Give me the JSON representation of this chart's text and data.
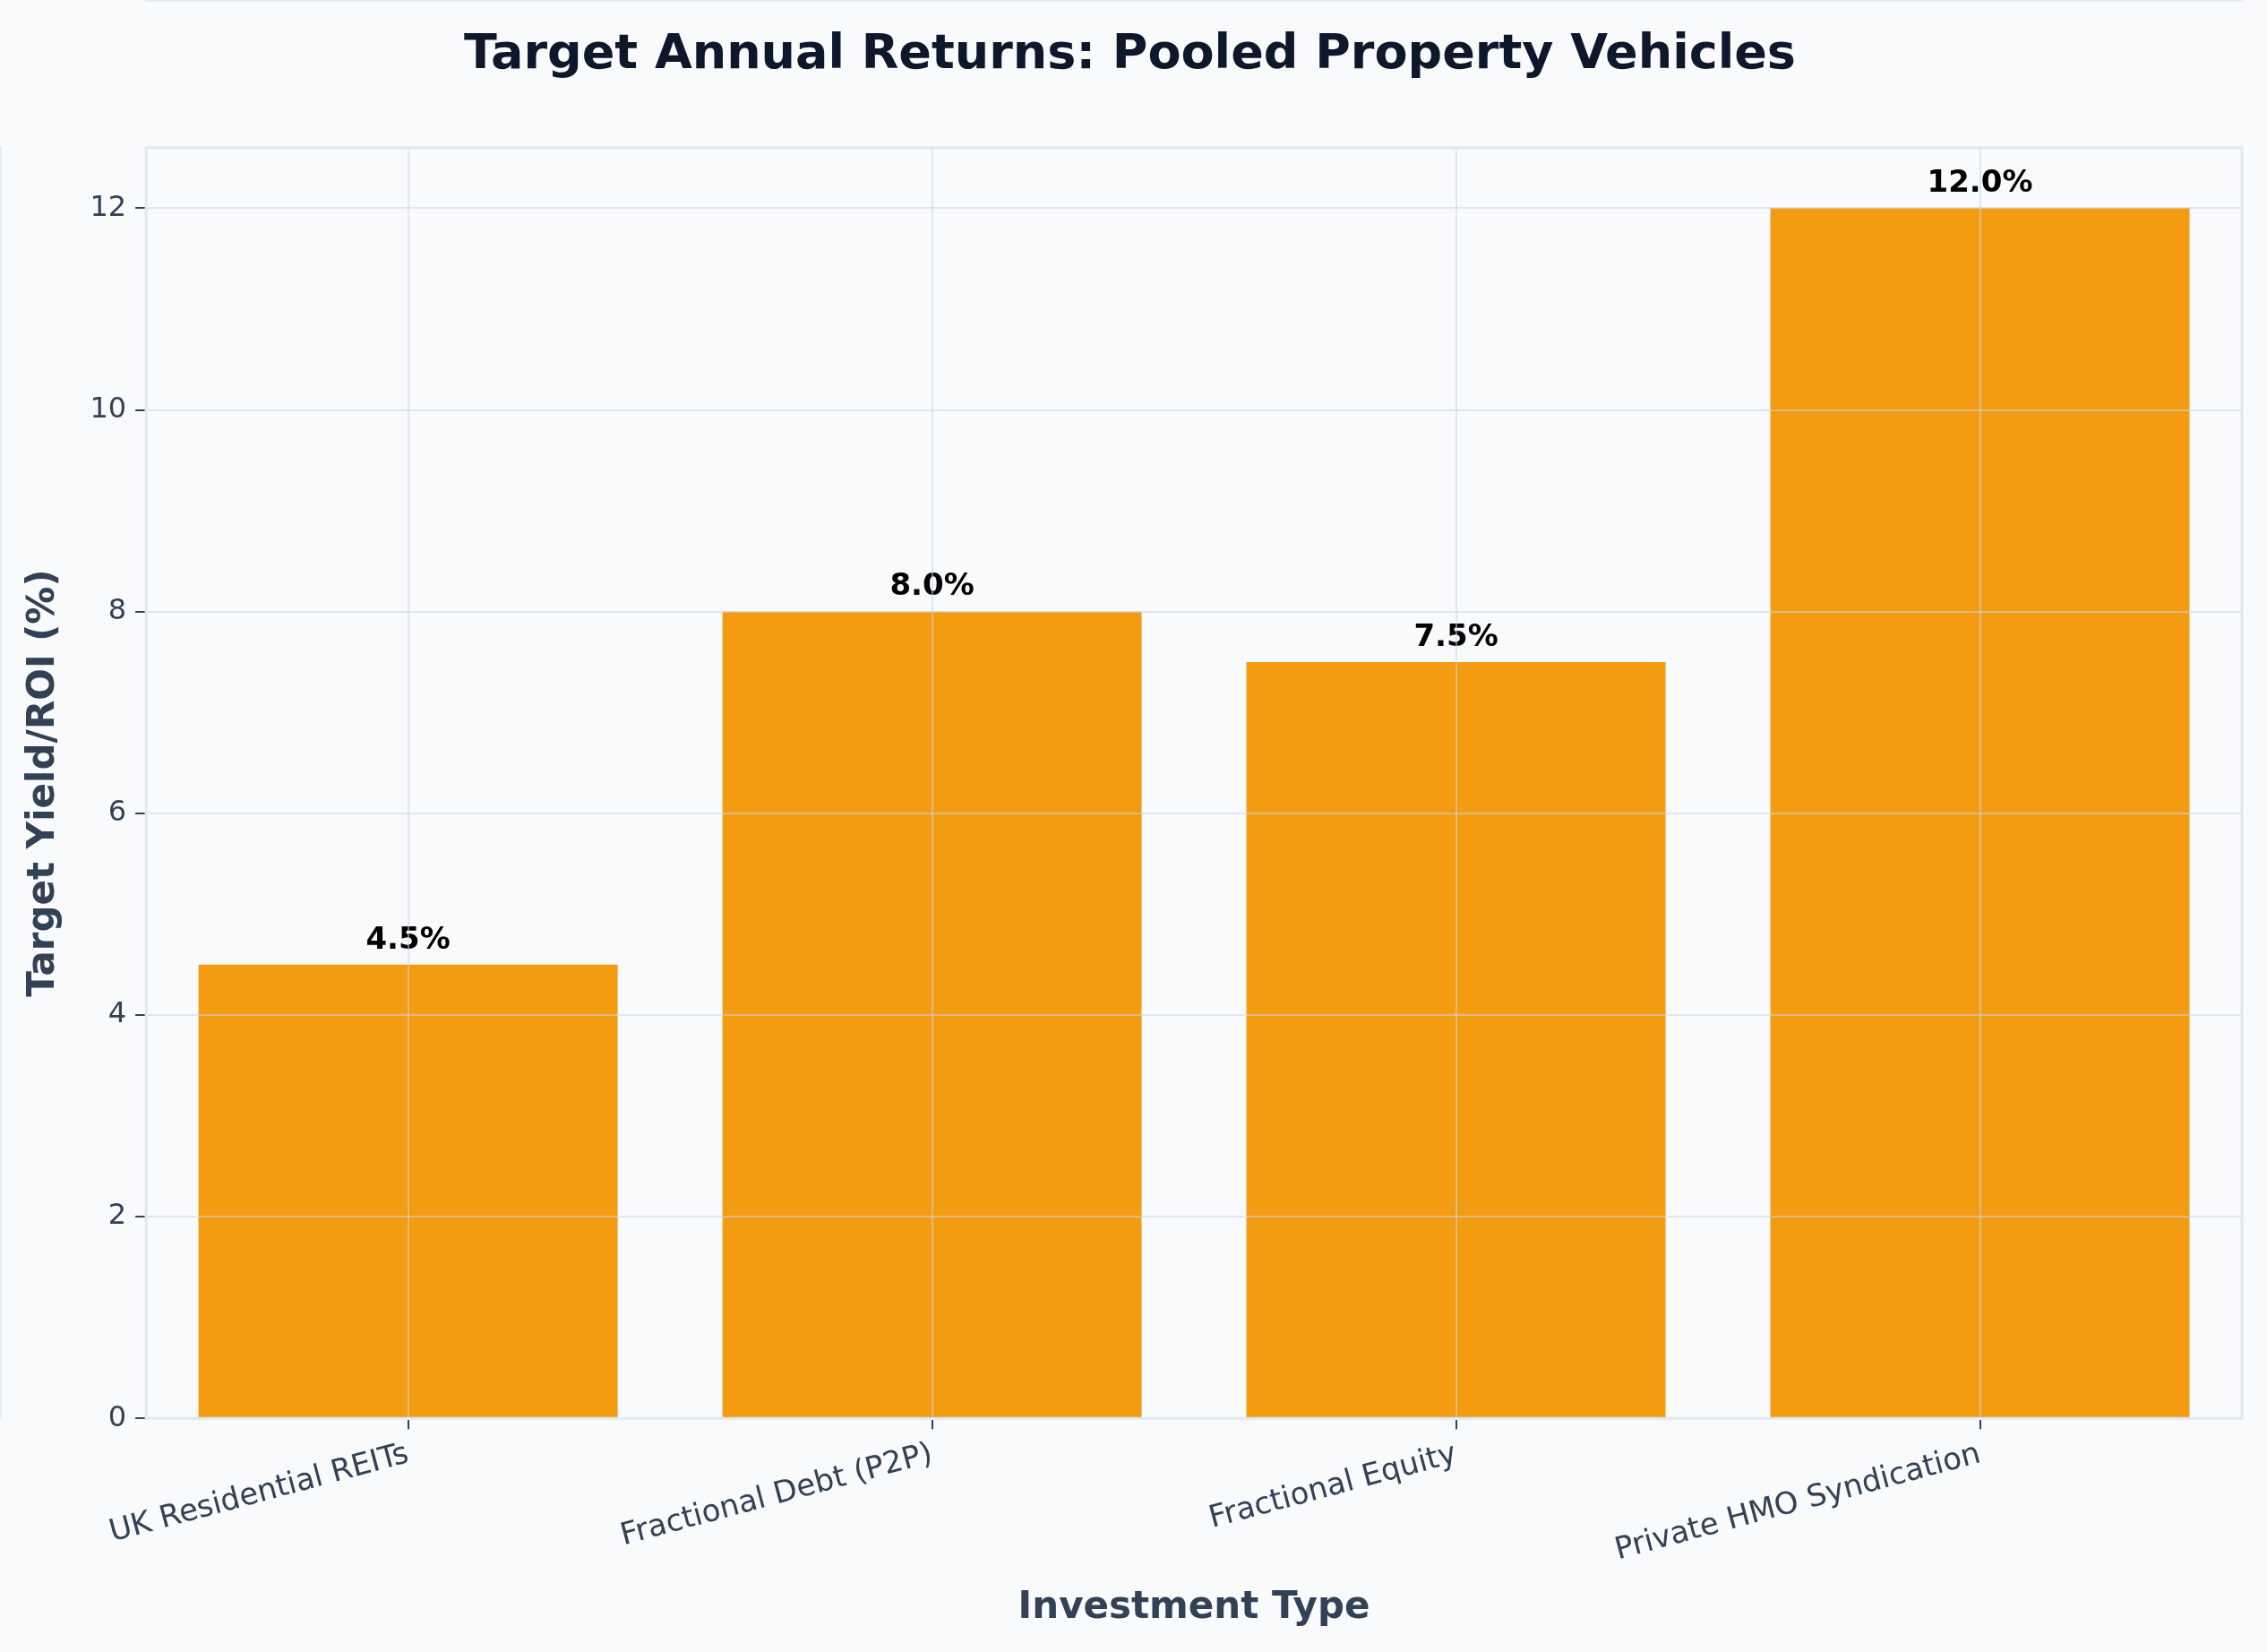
{
  "chart_data": {
    "type": "bar",
    "title": "Target Annual Returns: Pooled Property Vehicles",
    "xlabel": "Investment Type",
    "ylabel": "Target Yield/ROI (%)",
    "categories": [
      "UK Residential REITs",
      "Fractional Debt (P2P)",
      "Fractional Equity",
      "Private HMO Syndication"
    ],
    "values": [
      4.5,
      8.0,
      7.5,
      12.0
    ],
    "value_labels": [
      "4.5%",
      "8.0%",
      "7.5%",
      "12.0%"
    ],
    "color": "#f39c12",
    "ylim": [
      0,
      12.6
    ],
    "yticks": [
      0,
      2,
      4,
      6,
      8,
      10,
      12
    ],
    "grid": true,
    "legend": false
  }
}
